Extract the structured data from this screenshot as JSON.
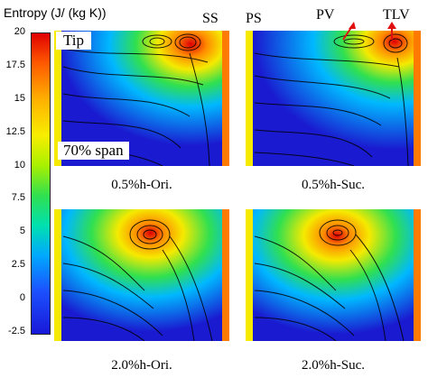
{
  "legend": {
    "title": "Entropy (J/ (kg K))",
    "ticks": [
      "20",
      "17.5",
      "15",
      "12.5",
      "10",
      "7.5",
      "5",
      "2.5",
      "0",
      "-2.5"
    ]
  },
  "labels": {
    "tip": "Tip",
    "span": "70% span",
    "ss": "SS",
    "ps": "PS",
    "pv": "PV",
    "tlv": "TLV"
  },
  "captions": {
    "top_left": "0.5%h-Ori.",
    "top_right": "0.5%h-Suc.",
    "bottom_left": "2.0%h-Ori.",
    "bottom_right": "2.0%h-Suc."
  },
  "colors": {
    "red": "#e00000",
    "orange": "#ff7a00",
    "yellow": "#f5ea00",
    "green": "#30e050",
    "cyan": "#00d8ff",
    "blue": "#1c50ff",
    "deep_blue": "#1a1ad0",
    "arrow": "#e01010"
  }
}
